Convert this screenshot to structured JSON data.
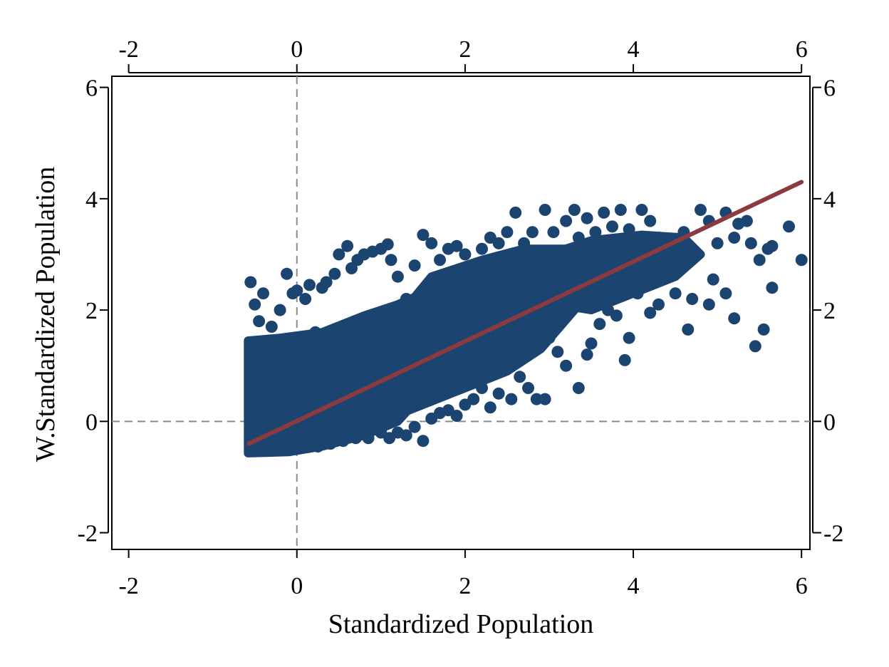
{
  "chart_data": {
    "type": "scatter",
    "title": "",
    "xlabel": "Standardized Population",
    "ylabel": "W.Standardized Population",
    "xlim": [
      -2.2,
      6.1
    ],
    "ylim": [
      -2.3,
      6.2
    ],
    "x_ticks": [
      -2,
      0,
      2,
      4,
      6
    ],
    "y_ticks": [
      -2,
      0,
      2,
      4,
      6
    ],
    "x_tick_labels": [
      "-2",
      "0",
      "2",
      "4",
      "6"
    ],
    "y_tick_labels": [
      "-2",
      "0",
      "2",
      "4",
      "6"
    ],
    "reference_lines": {
      "x": 0,
      "y": 0,
      "style": "dashed"
    },
    "grid": false,
    "colors": {
      "points": "#1b4470",
      "fit_line": "#8b3a40",
      "reference": "#8a8a8a"
    },
    "series": [
      {
        "kind": "points",
        "points": [
          [
            -0.55,
            2.5
          ],
          [
            -0.5,
            2.1
          ],
          [
            -0.45,
            1.8
          ],
          [
            -0.4,
            2.3
          ],
          [
            -0.3,
            1.7
          ],
          [
            -0.2,
            2.0
          ],
          [
            -0.12,
            2.65
          ],
          [
            -0.05,
            2.3
          ],
          [
            0.0,
            2.35
          ],
          [
            0.1,
            2.2
          ],
          [
            0.15,
            2.45
          ],
          [
            0.22,
            1.6
          ],
          [
            0.3,
            2.4
          ],
          [
            0.35,
            2.5
          ],
          [
            0.45,
            2.65
          ],
          [
            0.5,
            3.0
          ],
          [
            0.6,
            3.15
          ],
          [
            0.65,
            2.75
          ],
          [
            0.72,
            2.9
          ],
          [
            0.8,
            3.0
          ],
          [
            0.9,
            3.05
          ],
          [
            1.0,
            3.1
          ],
          [
            1.08,
            3.18
          ],
          [
            1.12,
            2.9
          ],
          [
            1.2,
            2.6
          ],
          [
            1.3,
            2.2
          ],
          [
            1.4,
            2.8
          ],
          [
            1.5,
            3.35
          ],
          [
            1.6,
            3.2
          ],
          [
            1.7,
            2.9
          ],
          [
            1.8,
            3.1
          ],
          [
            1.9,
            3.15
          ],
          [
            2.0,
            3.0
          ],
          [
            2.1,
            2.8
          ],
          [
            2.2,
            3.1
          ],
          [
            2.3,
            3.3
          ],
          [
            2.4,
            3.2
          ],
          [
            2.5,
            3.4
          ],
          [
            2.6,
            3.75
          ],
          [
            2.7,
            3.2
          ],
          [
            2.8,
            3.4
          ],
          [
            2.95,
            3.8
          ],
          [
            3.05,
            3.4
          ],
          [
            3.2,
            3.6
          ],
          [
            3.3,
            3.8
          ],
          [
            3.35,
            3.3
          ],
          [
            3.45,
            3.65
          ],
          [
            3.55,
            3.4
          ],
          [
            3.65,
            3.75
          ],
          [
            3.75,
            3.5
          ],
          [
            3.85,
            3.8
          ],
          [
            3.95,
            3.45
          ],
          [
            4.1,
            3.8
          ],
          [
            4.2,
            3.6
          ],
          [
            4.3,
            3.3
          ],
          [
            4.4,
            2.95
          ],
          [
            4.5,
            3.2
          ],
          [
            4.6,
            3.4
          ],
          [
            4.7,
            3.1
          ],
          [
            4.8,
            3.8
          ],
          [
            4.9,
            3.6
          ],
          [
            5.0,
            3.2
          ],
          [
            5.1,
            3.75
          ],
          [
            5.2,
            3.3
          ],
          [
            5.25,
            3.55
          ],
          [
            5.35,
            3.6
          ],
          [
            5.4,
            3.2
          ],
          [
            5.5,
            2.9
          ],
          [
            5.6,
            3.1
          ],
          [
            5.65,
            3.15
          ],
          [
            5.85,
            3.5
          ],
          [
            6.0,
            2.9
          ],
          [
            5.65,
            2.4
          ],
          [
            5.55,
            1.65
          ],
          [
            5.45,
            1.35
          ],
          [
            5.2,
            1.85
          ],
          [
            5.1,
            2.3
          ],
          [
            4.95,
            2.55
          ],
          [
            4.9,
            2.1
          ],
          [
            4.7,
            2.2
          ],
          [
            4.65,
            1.65
          ],
          [
            4.5,
            2.3
          ],
          [
            4.4,
            2.7
          ],
          [
            4.3,
            2.1
          ],
          [
            4.2,
            1.95
          ],
          [
            4.05,
            2.3
          ],
          [
            3.95,
            1.5
          ],
          [
            3.9,
            1.1
          ],
          [
            3.8,
            1.9
          ],
          [
            3.7,
            2.0
          ],
          [
            3.6,
            1.75
          ],
          [
            3.5,
            1.4
          ],
          [
            3.45,
            1.2
          ],
          [
            3.35,
            0.6
          ],
          [
            3.2,
            1.0
          ],
          [
            3.1,
            1.25
          ],
          [
            3.0,
            1.5
          ],
          [
            2.95,
            0.4
          ],
          [
            2.85,
            0.4
          ],
          [
            2.75,
            0.6
          ],
          [
            2.65,
            0.8
          ],
          [
            2.55,
            0.4
          ],
          [
            2.4,
            0.5
          ],
          [
            2.3,
            0.25
          ],
          [
            2.2,
            0.6
          ],
          [
            2.1,
            0.4
          ],
          [
            2.0,
            0.3
          ],
          [
            1.9,
            0.1
          ],
          [
            1.8,
            0.2
          ],
          [
            1.7,
            0.15
          ],
          [
            1.6,
            0.05
          ],
          [
            1.5,
            -0.35
          ],
          [
            1.4,
            -0.1
          ],
          [
            1.3,
            -0.25
          ],
          [
            1.2,
            -0.2
          ],
          [
            1.1,
            -0.3
          ],
          [
            1.0,
            -0.2
          ],
          [
            0.85,
            -0.3
          ],
          [
            0.7,
            -0.3
          ],
          [
            0.55,
            -0.35
          ],
          [
            0.4,
            -0.4
          ],
          [
            0.25,
            -0.45
          ],
          [
            0.1,
            -0.45
          ]
        ]
      },
      {
        "kind": "fit_line",
        "points": [
          [
            -0.57,
            -0.4
          ],
          [
            6.0,
            4.3
          ]
        ]
      }
    ]
  }
}
